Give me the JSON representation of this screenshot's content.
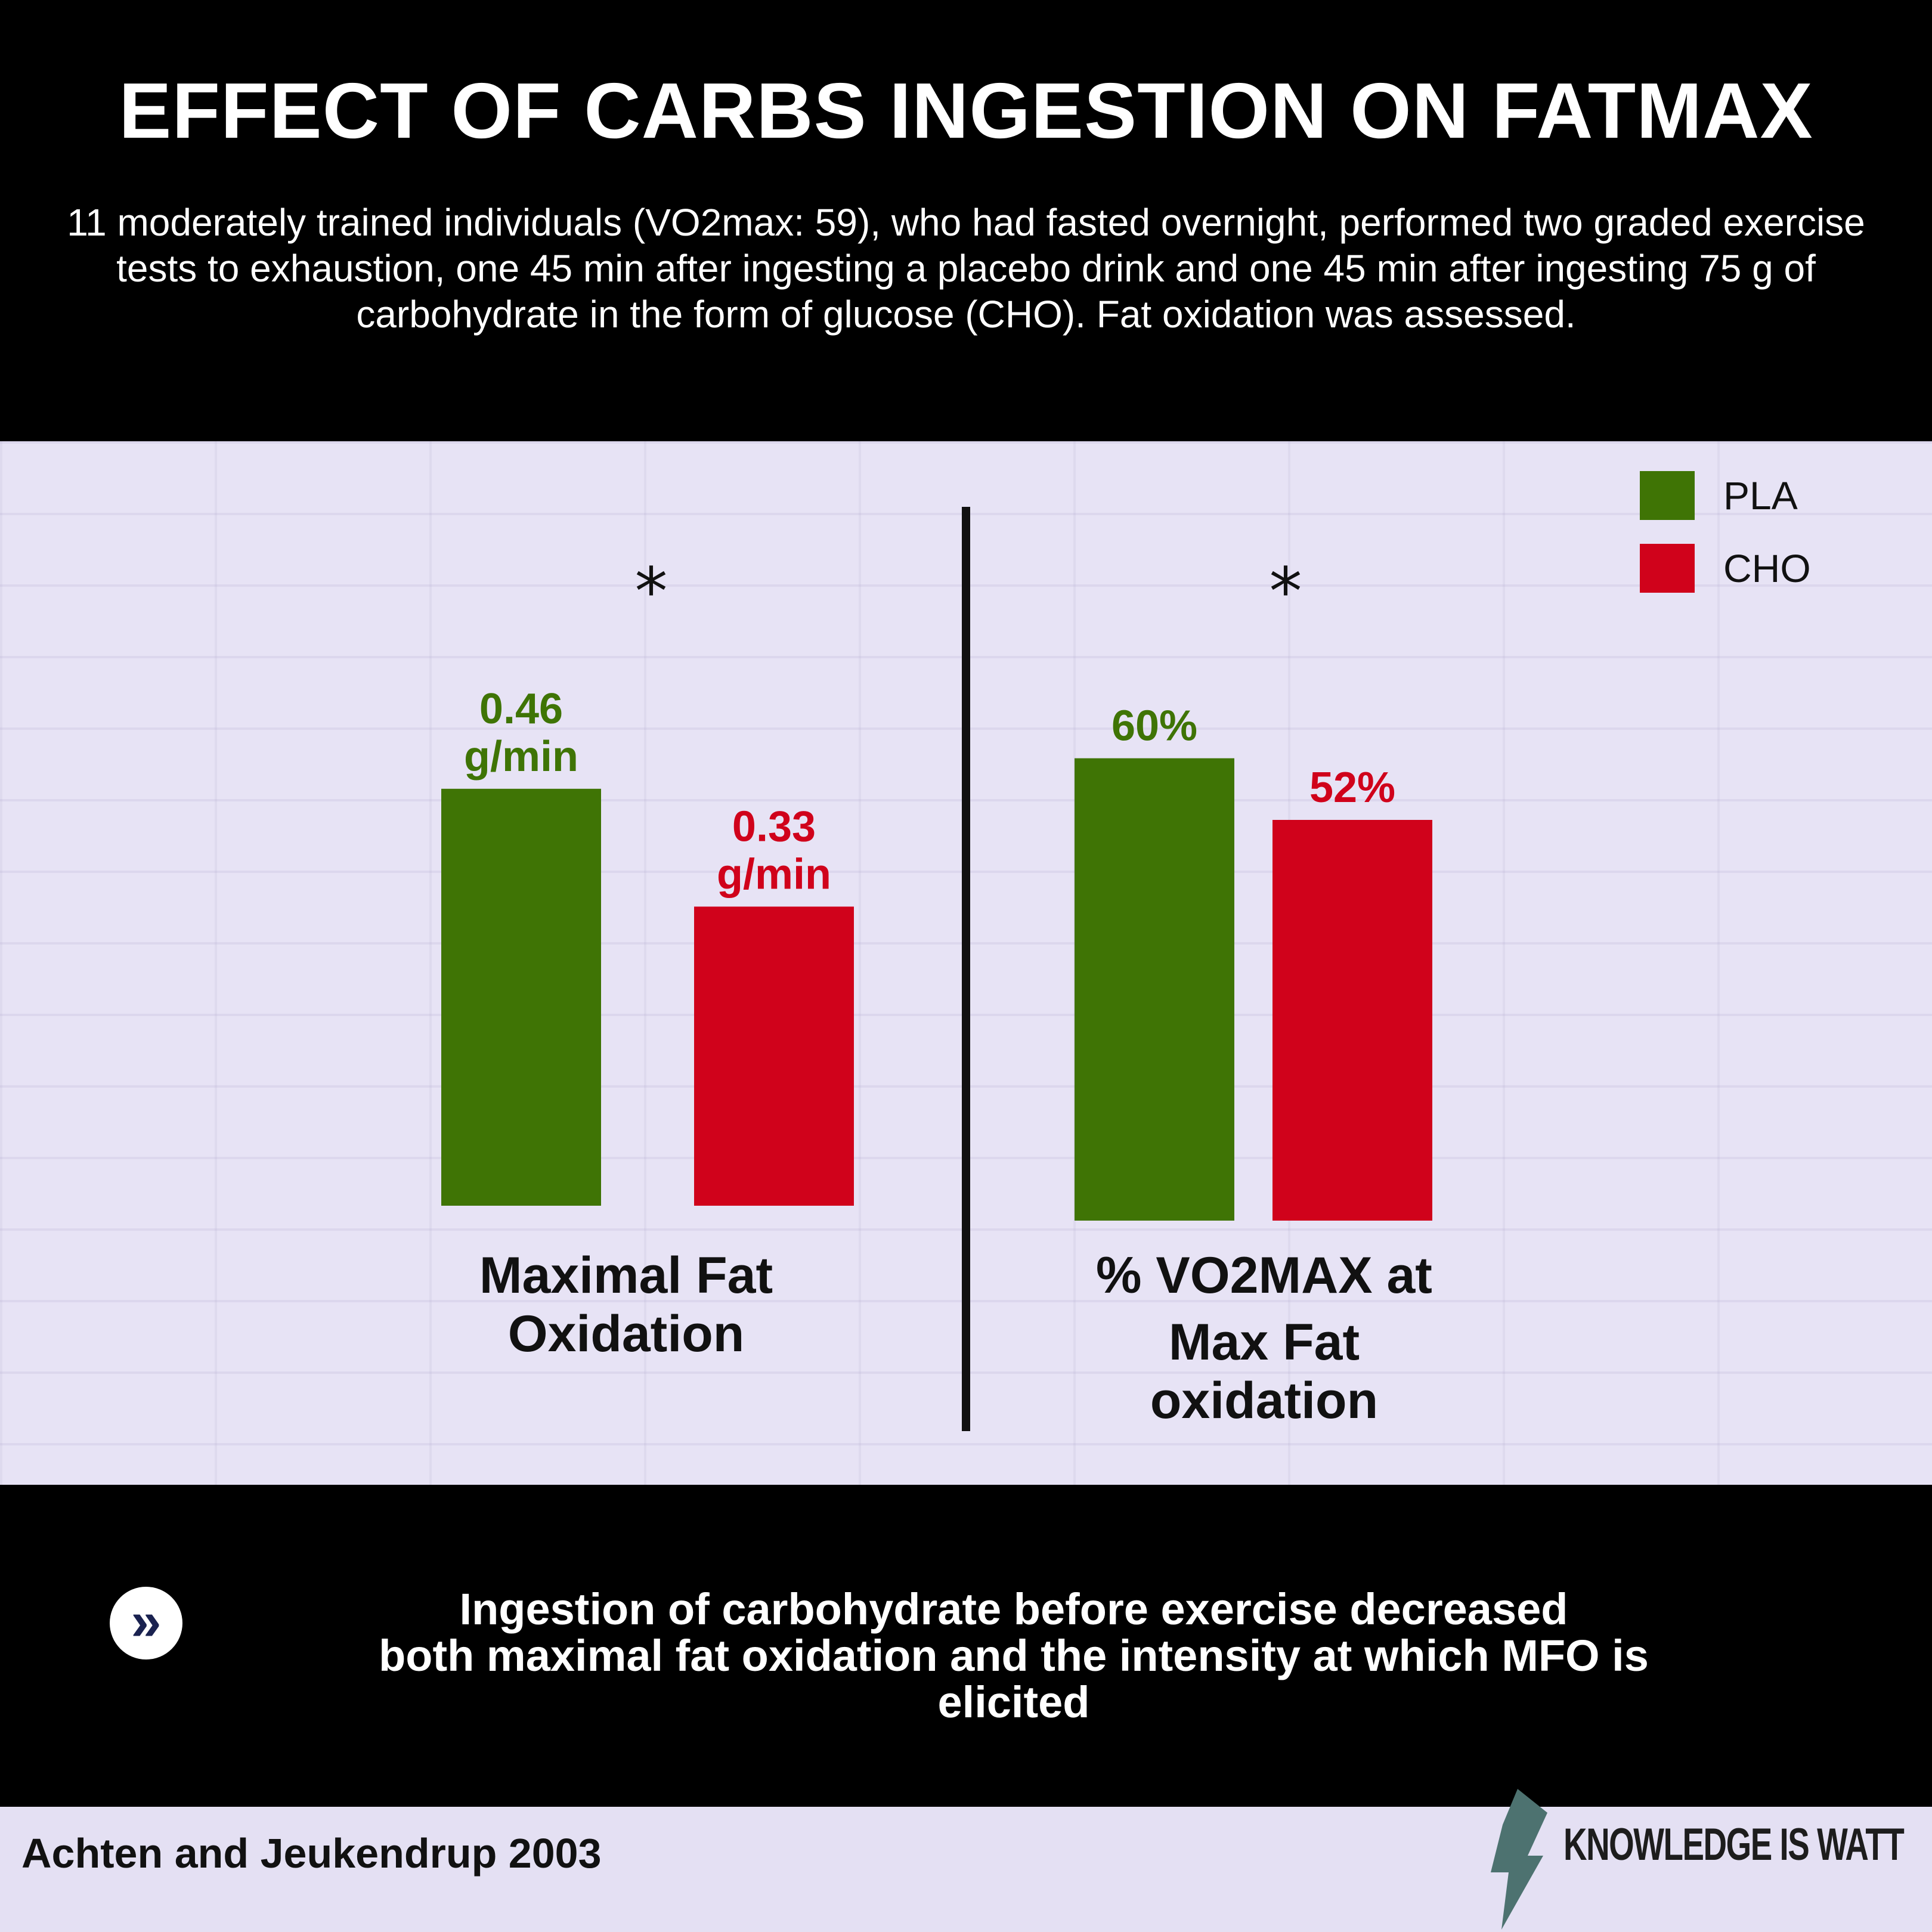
{
  "header": {
    "title": "EFFECT OF CARBS INGESTION ON FATMAX",
    "subtitle": "11 moderately trained individuals (VO2max: 59), who had fasted overnight, performed two graded exercise tests to exhaustion, one 45 min after ingesting a placebo drink and one 45 min after ingesting 75 g of carbohydrate in the form of glucose (CHO). Fat oxidation was assessed."
  },
  "legend": {
    "items": [
      {
        "label": "PLA",
        "color": "#3f7405"
      },
      {
        "label": "CHO",
        "color": "#d0021b"
      }
    ]
  },
  "chart_data": [
    {
      "type": "bar",
      "title": "Maximal Fat Oxidation",
      "categories": [
        "PLA",
        "CHO"
      ],
      "values": [
        0.46,
        0.33
      ],
      "data_labels": [
        "0.46 g/min",
        "0.33 g/min"
      ],
      "unit": "g/min",
      "significance": "*",
      "colors": [
        "#3f7405",
        "#d0021b"
      ],
      "grid": false,
      "axes_visible": false
    },
    {
      "type": "bar",
      "title": "% VO2MAX at Max Fat oxidation",
      "categories": [
        "PLA",
        "CHO"
      ],
      "values": [
        60,
        52
      ],
      "data_labels": [
        "60%",
        "52%"
      ],
      "unit": "%",
      "significance": "*",
      "colors": [
        "#3f7405",
        "#d0021b"
      ],
      "grid": false,
      "axes_visible": false
    }
  ],
  "panels": {
    "left_title_line1": "Maximal Fat",
    "left_title_line2": "Oxidation",
    "right_title_line1": "% VO2MAX at",
    "right_title_line2": "Max Fat",
    "right_title_line3": "oxidation"
  },
  "banner": {
    "icon": "double-chevron-right-icon",
    "text_line1": "Ingestion of carbohydrate before exercise decreased",
    "text_line2": "both maximal fat oxidation and the intensity at which MFO is",
    "text_line3": "elicited"
  },
  "footer": {
    "citation": "Achten and Jeukendrup 2003",
    "brand": "KNOWLEDGE IS WATT",
    "brand_icon": "lightning-bolt-icon"
  }
}
